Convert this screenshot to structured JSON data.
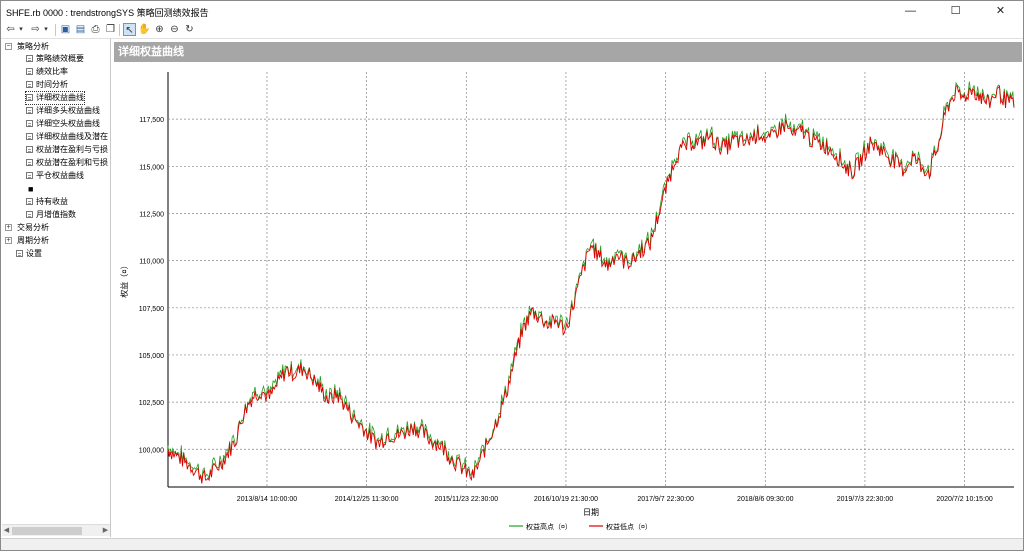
{
  "window": {
    "title": "SHFE.rb 0000 : trendstrongSYS 策略回测绩效报告",
    "minimize": "—",
    "maximize": "☐",
    "close": "✕"
  },
  "toolbar": {
    "icons": [
      "back-arrow-icon",
      "dropdown-icon",
      "forward-arrow-icon",
      "dropdown-icon",
      "save-icon",
      "print-preview-icon",
      "print-icon",
      "copy-icon",
      "pointer-icon",
      "hand-icon",
      "zoom-in-icon",
      "zoom-out-icon",
      "refresh-icon"
    ]
  },
  "tree": {
    "groups": [
      {
        "label": "策略分析",
        "expanded": true
      },
      {
        "label": "交易分析",
        "expanded": false
      },
      {
        "label": "周期分析",
        "expanded": false
      }
    ],
    "strategy_items": [
      "策略绩效概要",
      "绩效比率",
      "时间分析",
      "详细权益曲线",
      "详细多头权益曲线",
      "详细空头权益曲线",
      "详细权益曲线及潜在",
      "权益潜在盈利与亏损",
      "权益潜在盈利和亏损",
      "平仓权益曲线",
      "■",
      "持有收益",
      "月增值指数"
    ],
    "selected_index": 3,
    "settings_label": "设置"
  },
  "panel": {
    "header": "详细权益曲线"
  },
  "chart_data": {
    "type": "line",
    "title": "",
    "xlabel": "日期",
    "ylabel": "权益（¤）",
    "ylim": [
      98000,
      120000
    ],
    "yticks": [
      "100,000",
      "102,500",
      "105,000",
      "107,500",
      "110,000",
      "112,500",
      "115,000",
      "117,500"
    ],
    "ytick_values": [
      100000,
      102500,
      105000,
      107500,
      110000,
      112500,
      115000,
      117500
    ],
    "xticks": [
      "2013/8/14 10:00:00",
      "2014/12/25 11:30:00",
      "2015/11/23 22:30:00",
      "2016/10/19 21:30:00",
      "2017/9/7 22:30:00",
      "2018/8/6 09:30:00",
      "2019/7/3 22:30:00",
      "2020/7/2 10:15:00"
    ],
    "grid": true,
    "legend": "bottom-center",
    "series": [
      {
        "name": "权益高点（¤）",
        "color": "#22a022"
      },
      {
        "name": "权益低点（¤）",
        "color": "#dd0000"
      }
    ],
    "points": [
      [
        0,
        100000
      ],
      [
        0.015,
        99500
      ],
      [
        0.03,
        99000
      ],
      [
        0.045,
        98400
      ],
      [
        0.055,
        98900
      ],
      [
        0.065,
        99400
      ],
      [
        0.08,
        100500
      ],
      [
        0.09,
        102000
      ],
      [
        0.1,
        102800
      ],
      [
        0.11,
        103100
      ],
      [
        0.12,
        102700
      ],
      [
        0.13,
        103500
      ],
      [
        0.14,
        104200
      ],
      [
        0.15,
        104000
      ],
      [
        0.16,
        104300
      ],
      [
        0.17,
        103800
      ],
      [
        0.18,
        103200
      ],
      [
        0.19,
        102600
      ],
      [
        0.2,
        102900
      ],
      [
        0.21,
        102300
      ],
      [
        0.22,
        101600
      ],
      [
        0.23,
        101200
      ],
      [
        0.24,
        100600
      ],
      [
        0.25,
        100300
      ],
      [
        0.26,
        100800
      ],
      [
        0.27,
        100700
      ],
      [
        0.28,
        100900
      ],
      [
        0.29,
        101200
      ],
      [
        0.3,
        100900
      ],
      [
        0.31,
        100500
      ],
      [
        0.32,
        100300
      ],
      [
        0.33,
        99800
      ],
      [
        0.34,
        99300
      ],
      [
        0.35,
        98900
      ],
      [
        0.36,
        98500
      ],
      [
        0.37,
        99500
      ],
      [
        0.38,
        100600
      ],
      [
        0.39,
        101700
      ],
      [
        0.4,
        103000
      ],
      [
        0.41,
        104800
      ],
      [
        0.42,
        106400
      ],
      [
        0.43,
        107300
      ],
      [
        0.44,
        107000
      ],
      [
        0.45,
        106600
      ],
      [
        0.46,
        106800
      ],
      [
        0.47,
        106300
      ],
      [
        0.48,
        107800
      ],
      [
        0.49,
        109400
      ],
      [
        0.5,
        110800
      ],
      [
        0.51,
        110200
      ],
      [
        0.52,
        109700
      ],
      [
        0.53,
        110400
      ],
      [
        0.54,
        109900
      ],
      [
        0.55,
        110000
      ],
      [
        0.56,
        110600
      ],
      [
        0.57,
        110900
      ],
      [
        0.58,
        112500
      ],
      [
        0.59,
        114000
      ],
      [
        0.6,
        115500
      ],
      [
        0.61,
        116000
      ],
      [
        0.62,
        116300
      ],
      [
        0.63,
        116200
      ],
      [
        0.64,
        116600
      ],
      [
        0.65,
        116100
      ],
      [
        0.66,
        116000
      ],
      [
        0.67,
        116400
      ],
      [
        0.68,
        116200
      ],
      [
        0.69,
        116500
      ],
      [
        0.7,
        116800
      ],
      [
        0.71,
        116300
      ],
      [
        0.72,
        116900
      ],
      [
        0.73,
        117200
      ],
      [
        0.74,
        116600
      ],
      [
        0.75,
        116900
      ],
      [
        0.76,
        116400
      ],
      [
        0.77,
        116200
      ],
      [
        0.78,
        116000
      ],
      [
        0.79,
        115600
      ],
      [
        0.8,
        115000
      ],
      [
        0.81,
        114700
      ],
      [
        0.82,
        115400
      ],
      [
        0.83,
        116200
      ],
      [
        0.84,
        116000
      ],
      [
        0.85,
        115600
      ],
      [
        0.86,
        115200
      ],
      [
        0.87,
        114800
      ],
      [
        0.88,
        115500
      ],
      [
        0.89,
        115000
      ],
      [
        0.9,
        114700
      ],
      [
        0.91,
        116000
      ],
      [
        0.92,
        118000
      ],
      [
        0.93,
        118900
      ],
      [
        0.94,
        118600
      ],
      [
        0.95,
        119100
      ],
      [
        0.96,
        118700
      ],
      [
        0.97,
        118300
      ],
      [
        0.98,
        119000
      ],
      [
        0.99,
        118500
      ],
      [
        1.0,
        118200
      ]
    ]
  }
}
